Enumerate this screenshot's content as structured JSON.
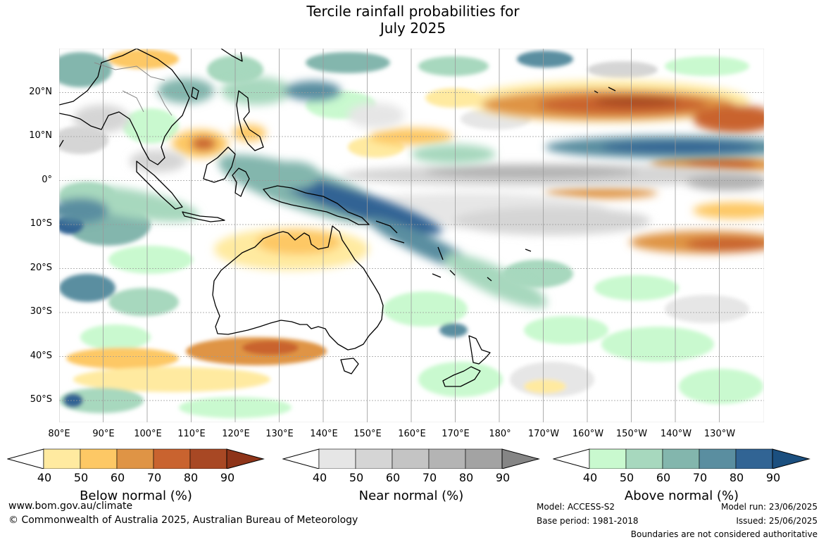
{
  "title_line1": "Tercile rainfall probabilities for",
  "title_line2": "July 2025",
  "lat_labels": [
    "20°N",
    "10°N",
    "0°",
    "10°S",
    "20°S",
    "30°S",
    "40°S",
    "50°S"
  ],
  "lon_labels": [
    "80°E",
    "90°E",
    "100°E",
    "110°E",
    "120°E",
    "130°E",
    "140°E",
    "150°E",
    "160°E",
    "170°E",
    "180°",
    "170°W",
    "160°W",
    "150°W",
    "140°W",
    "130°W"
  ],
  "colorbars": [
    {
      "label": "Below normal (%)",
      "ticks": [
        "40",
        "50",
        "60",
        "70",
        "80",
        "90"
      ],
      "colors": [
        "#ffffff",
        "#ffeaa0",
        "#fdc865",
        "#df9445",
        "#c9632f",
        "#a84824",
        "#8e3419"
      ]
    },
    {
      "label": "Near normal (%)",
      "ticks": [
        "40",
        "50",
        "60",
        "70",
        "80",
        "90"
      ],
      "colors": [
        "#ffffff",
        "#e6e6e6",
        "#d5d5d5",
        "#c4c4c4",
        "#b4b4b4",
        "#a3a3a3",
        "#858585"
      ]
    },
    {
      "label": "Above normal (%)",
      "ticks": [
        "40",
        "50",
        "60",
        "70",
        "80",
        "90"
      ],
      "colors": [
        "#ffffff",
        "#c9f9cf",
        "#a7d8be",
        "#83b6ad",
        "#5a8ea0",
        "#316494",
        "#1b4f7f"
      ]
    }
  ],
  "footer": {
    "url": "www.bom.gov.au/climate",
    "copyright": "© Commonwealth of Australia 2025, Australian Bureau of Meteorology",
    "model": "Model: ACCESS-S2",
    "base_period": "Base period: 1981-2018",
    "model_run": "Model run: 23/06/2025",
    "issued": "Issued: 25/06/2025",
    "disclaimer": "Boundaries are not considered authoritative"
  }
}
